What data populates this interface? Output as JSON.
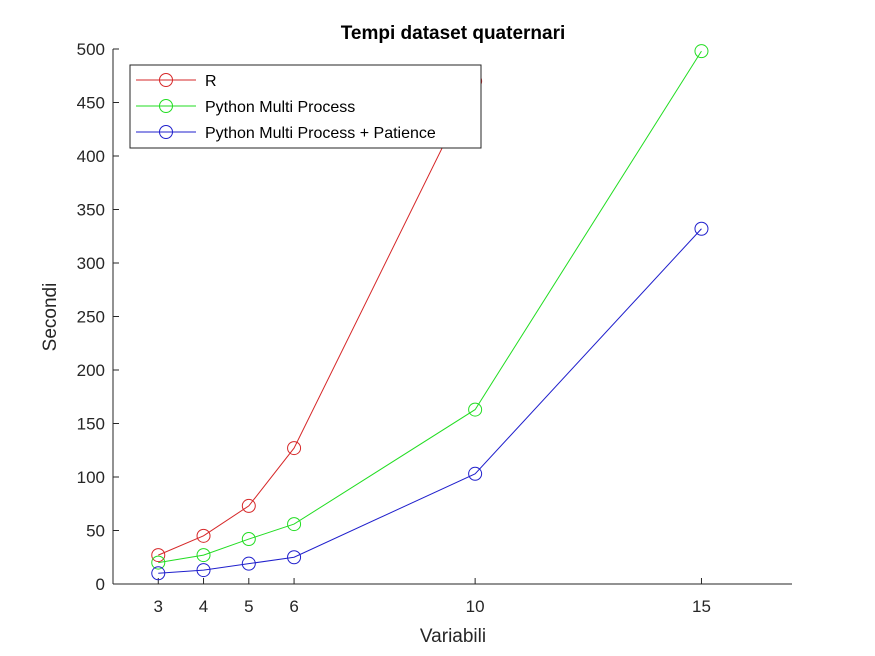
{
  "chart_data": {
    "type": "line",
    "title": "Tempi dataset quaternari",
    "xlabel": "Variabili",
    "ylabel": "Secondi",
    "xlim": [
      2,
      17
    ],
    "ylim": [
      0,
      500
    ],
    "xticks": [
      3,
      4,
      5,
      6,
      10,
      15
    ],
    "yticks": [
      0,
      50,
      100,
      150,
      200,
      250,
      300,
      350,
      400,
      450,
      500
    ],
    "grid": false,
    "legend_position": "top-left",
    "series": [
      {
        "name": "R",
        "color": "#d62728",
        "marker": "circle",
        "x": [
          3,
          4,
          5,
          6,
          10
        ],
        "y": [
          27,
          45,
          73,
          127,
          470
        ]
      },
      {
        "name": "Python Multi Process",
        "color": "#22dd22",
        "marker": "circle",
        "x": [
          3,
          4,
          5,
          6,
          10,
          15
        ],
        "y": [
          20,
          27,
          42,
          56,
          163,
          498
        ]
      },
      {
        "name": "Python Multi Process + Patience",
        "color": "#1f1fcc",
        "marker": "circle",
        "x": [
          3,
          4,
          5,
          6,
          10,
          15
        ],
        "y": [
          10,
          13,
          19,
          25,
          103,
          332
        ]
      }
    ]
  }
}
